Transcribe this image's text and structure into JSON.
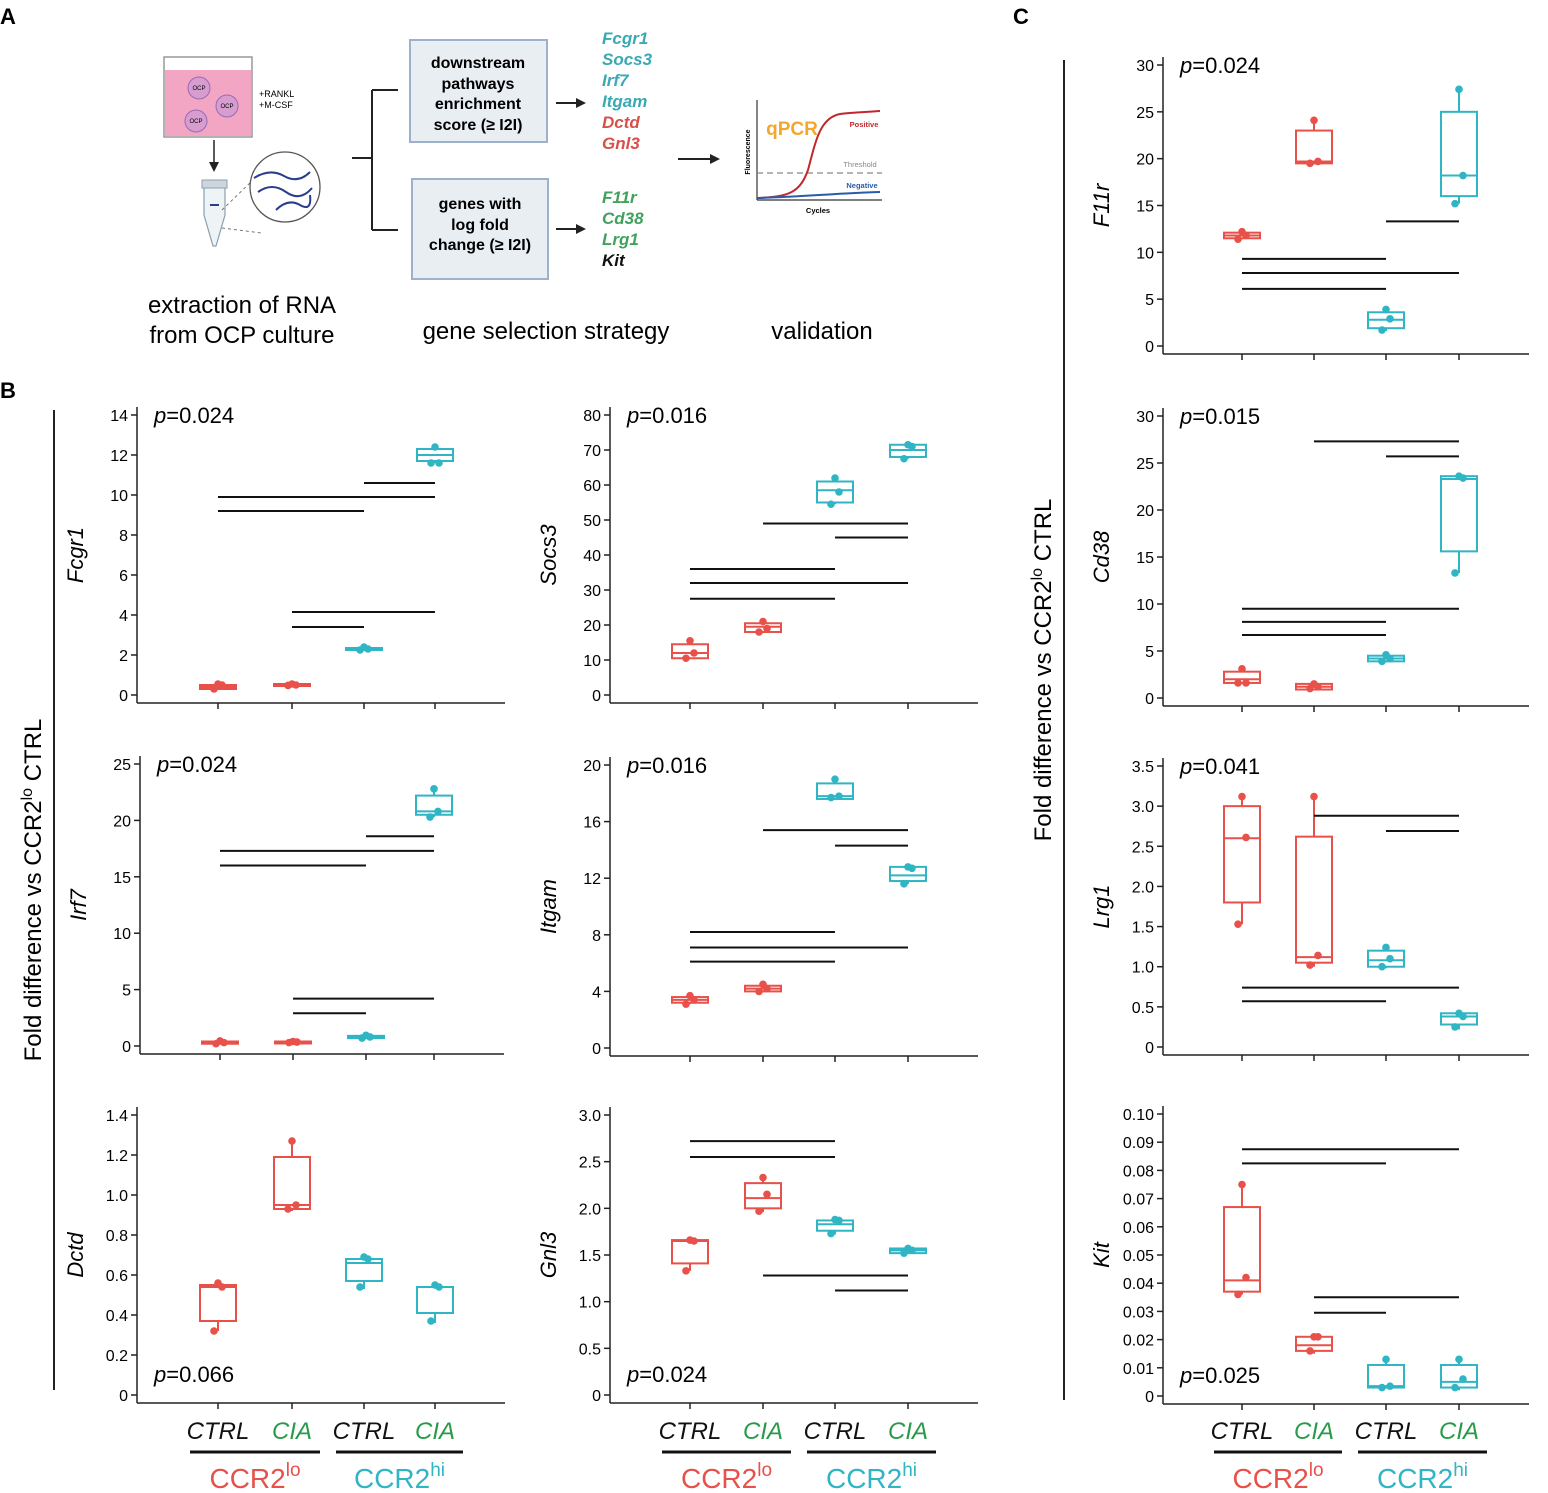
{
  "colors": {
    "lo": "#e8504a",
    "hi": "#2fb5c4",
    "ciaGreen": "#2a9a4a",
    "tealGene": "#3aa9b4",
    "redGene": "#d8504b",
    "greenGene": "#3fa35c",
    "qpcrOrange": "#f4a72d",
    "positiveRed": "#c0282d",
    "negativeBlue": "#2a5caa"
  },
  "panels": {
    "a": "A",
    "b": "B",
    "c": "C"
  },
  "schematic": {
    "flask_labels": [
      "OCP",
      "OCP",
      "OCP"
    ],
    "medium_lines": [
      "+RANKL",
      "+M-CSF"
    ],
    "extraction_lines": [
      "extraction of RNA",
      "from OCP culture"
    ],
    "box1_lines": [
      "downstream",
      "pathways",
      "enrichment",
      "score (≥ I2I)"
    ],
    "box2_lines": [
      "genes with",
      "log fold",
      "change (≥ I2I)"
    ],
    "genes_box1": [
      {
        "name": "Fcgr1",
        "kind": "teal"
      },
      {
        "name": "Socs3",
        "kind": "teal"
      },
      {
        "name": "Irf7",
        "kind": "teal"
      },
      {
        "name": "Itgam",
        "kind": "teal"
      },
      {
        "name": "Dctd",
        "kind": "red"
      },
      {
        "name": "Gnl3",
        "kind": "red"
      }
    ],
    "genes_box2": [
      {
        "name": "F11r",
        "kind": "green"
      },
      {
        "name": "Cd38",
        "kind": "green"
      },
      {
        "name": "Lrg1",
        "kind": "green"
      },
      {
        "name": "Kit",
        "kind": "black"
      }
    ],
    "strategy_label": "gene selection strategy",
    "validation_label": "validation",
    "qpcr": {
      "title": "qPCR",
      "positive": "Positive",
      "threshold": "Threshold",
      "negative": "Negative",
      "xlabel": "Cycles",
      "ylabel": "Fluorescence"
    }
  },
  "y_axis_title_b": "Fold difference vs CCR2lo CTRL",
  "y_axis_title_c": "Fold difference vs CCR2lo CTRL",
  "x_groups": {
    "cat1": "CTRL",
    "cat2": "CIA",
    "lo_prefix": "CCR2",
    "lo_sup": "lo",
    "hi_prefix": "CCR2",
    "hi_sup": "hi"
  },
  "chart_data": [
    {
      "type": "box",
      "gene": "Fcgr1",
      "pvalue": "p=0.024",
      "ylim": [
        0,
        14
      ],
      "yticks": [
        0,
        2,
        4,
        6,
        8,
        10,
        12,
        14
      ],
      "ytick_labels": [
        "0",
        "2",
        "4",
        "6",
        "8",
        "10",
        "12",
        "14"
      ],
      "categories": [
        "CCR2lo CTRL",
        "CCR2lo CIA",
        "CCR2hi CTRL",
        "CCR2hi CIA"
      ],
      "groups": [
        {
          "q1": 0.3,
          "median": 0.4,
          "q3": 0.5,
          "wmin": 0.3,
          "wmax": 0.55,
          "points": [
            0.3,
            0.5,
            0.55
          ]
        },
        {
          "q1": 0.48,
          "median": 0.5,
          "q3": 0.55,
          "wmin": 0.48,
          "wmax": 0.55,
          "points": [
            0.48,
            0.5,
            0.55
          ]
        },
        {
          "q1": 2.25,
          "median": 2.3,
          "q3": 2.35,
          "wmin": 2.25,
          "wmax": 2.4,
          "points": [
            2.25,
            2.3,
            2.4
          ]
        },
        {
          "q1": 11.7,
          "median": 12.0,
          "q3": 12.3,
          "wmin": 11.6,
          "wmax": 12.5,
          "points": [
            11.6,
            11.6,
            12.4
          ]
        }
      ],
      "brackets": [
        [
          0,
          2,
          9.2
        ],
        [
          0,
          3,
          9.9
        ],
        [
          2,
          3,
          10.6
        ],
        [
          1,
          2,
          3.4
        ],
        [
          1,
          3,
          4.15
        ]
      ]
    },
    {
      "type": "box",
      "gene": "Socs3",
      "pvalue": "p=0.016",
      "ylim": [
        0,
        80
      ],
      "yticks": [
        0,
        10,
        20,
        30,
        40,
        50,
        60,
        70,
        80
      ],
      "ytick_labels": [
        "0",
        "10",
        "20",
        "30",
        "40",
        "50",
        "60",
        "70",
        "80"
      ],
      "categories": [
        "CCR2lo CTRL",
        "CCR2lo CIA",
        "CCR2hi CTRL",
        "CCR2hi CIA"
      ],
      "groups": [
        {
          "q1": 10.5,
          "median": 12,
          "q3": 14.5,
          "wmin": 10.5,
          "wmax": 15.5,
          "points": [
            10.5,
            12,
            15.5
          ]
        },
        {
          "q1": 18,
          "median": 19.5,
          "q3": 20.5,
          "wmin": 18,
          "wmax": 21,
          "points": [
            18,
            19,
            21
          ]
        },
        {
          "q1": 55,
          "median": 58.5,
          "q3": 61,
          "wmin": 54.5,
          "wmax": 62,
          "points": [
            54.5,
            58,
            62
          ]
        },
        {
          "q1": 68,
          "median": 70,
          "q3": 71.5,
          "wmin": 67.5,
          "wmax": 71.5,
          "points": [
            67.5,
            71,
            71.5
          ]
        }
      ],
      "brackets": [
        [
          0,
          1,
          36
        ],
        [
          1,
          2,
          36
        ],
        [
          0,
          2,
          27.5
        ],
        [
          0,
          3,
          32
        ],
        [
          1,
          3,
          49
        ],
        [
          2,
          3,
          45
        ]
      ]
    },
    {
      "type": "box",
      "gene": "Irf7",
      "pvalue": "p=0.024",
      "ylim": [
        0,
        25
      ],
      "yticks": [
        0,
        5,
        10,
        15,
        20,
        25
      ],
      "ytick_labels": [
        "0",
        "5",
        "10",
        "15",
        "20",
        "25"
      ],
      "categories": [
        "CCR2lo CTRL",
        "CCR2lo CIA",
        "CCR2hi CTRL",
        "CCR2hi CIA"
      ],
      "groups": [
        {
          "q1": 0.2,
          "median": 0.3,
          "q3": 0.4,
          "wmin": 0.2,
          "wmax": 0.45,
          "points": [
            0.2,
            0.3,
            0.45
          ]
        },
        {
          "q1": 0.3,
          "median": 0.35,
          "q3": 0.4,
          "wmin": 0.3,
          "wmax": 0.4,
          "points": [
            0.3,
            0.35,
            0.4
          ]
        },
        {
          "q1": 0.7,
          "median": 0.8,
          "q3": 0.9,
          "wmin": 0.7,
          "wmax": 0.95,
          "points": [
            0.7,
            0.8,
            0.95
          ]
        },
        {
          "q1": 20.5,
          "median": 20.8,
          "q3": 22.2,
          "wmin": 20.3,
          "wmax": 22.8,
          "points": [
            20.3,
            20.8,
            22.8
          ]
        }
      ],
      "brackets": [
        [
          0,
          2,
          16
        ],
        [
          0,
          3,
          17.3
        ],
        [
          2,
          3,
          18.6
        ],
        [
          1,
          2,
          2.9
        ],
        [
          1,
          3,
          4.2
        ]
      ]
    },
    {
      "type": "box",
      "gene": "Itgam",
      "pvalue": "p=0.016",
      "ylim": [
        0,
        20
      ],
      "yticks": [
        0,
        4,
        8,
        12,
        16,
        20
      ],
      "ytick_labels": [
        "0",
        "4",
        "8",
        "12",
        "16",
        "20"
      ],
      "categories": [
        "CCR2lo CTRL",
        "CCR2lo CIA",
        "CCR2hi CTRL",
        "CCR2hi CIA"
      ],
      "groups": [
        {
          "q1": 3.2,
          "median": 3.4,
          "q3": 3.6,
          "wmin": 3.1,
          "wmax": 3.7,
          "points": [
            3.1,
            3.4,
            3.7
          ]
        },
        {
          "q1": 4.0,
          "median": 4.2,
          "q3": 4.4,
          "wmin": 4.0,
          "wmax": 4.5,
          "points": [
            4.0,
            4.2,
            4.5
          ]
        },
        {
          "q1": 17.6,
          "median": 17.8,
          "q3": 18.7,
          "wmin": 17.6,
          "wmax": 19.0,
          "points": [
            17.7,
            17.8,
            19.0
          ]
        },
        {
          "q1": 11.8,
          "median": 12.2,
          "q3": 12.8,
          "wmin": 11.6,
          "wmax": 12.8,
          "points": [
            11.6,
            12.7,
            12.8
          ]
        }
      ],
      "brackets": [
        [
          0,
          1,
          8.2
        ],
        [
          1,
          2,
          8.2
        ],
        [
          0,
          3,
          7.1
        ],
        [
          0,
          2,
          6.1
        ],
        [
          1,
          3,
          15.4
        ],
        [
          2,
          3,
          14.3
        ]
      ]
    },
    {
      "type": "box",
      "gene": "Dctd",
      "pvalue": "p=0.066",
      "ylim": [
        0,
        1.4
      ],
      "yticks": [
        0,
        0.2,
        0.4,
        0.6,
        0.8,
        1.0,
        1.2,
        1.4
      ],
      "ytick_labels": [
        "0",
        "0.2",
        "0.4",
        "0.6",
        "0.8",
        "1.0",
        "1.2",
        "1.4"
      ],
      "categories": [
        "CCR2lo CTRL",
        "CCR2lo CIA",
        "CCR2hi CTRL",
        "CCR2hi CIA"
      ],
      "groups": [
        {
          "q1": 0.37,
          "median": 0.54,
          "q3": 0.55,
          "wmin": 0.32,
          "wmax": 0.56,
          "points": [
            0.32,
            0.54,
            0.56
          ]
        },
        {
          "q1": 0.93,
          "median": 0.95,
          "q3": 1.19,
          "wmin": 0.92,
          "wmax": 1.27,
          "points": [
            0.93,
            0.95,
            1.27
          ]
        },
        {
          "q1": 0.57,
          "median": 0.66,
          "q3": 0.68,
          "wmin": 0.53,
          "wmax": 0.69,
          "points": [
            0.54,
            0.68,
            0.69
          ]
        },
        {
          "q1": 0.41,
          "median": 0.54,
          "q3": 0.54,
          "wmin": 0.36,
          "wmax": 0.55,
          "points": [
            0.37,
            0.54,
            0.55
          ]
        }
      ],
      "brackets": []
    },
    {
      "type": "box",
      "gene": "Gnl3",
      "pvalue": "p=0.024",
      "ylim": [
        0,
        3.0
      ],
      "yticks": [
        0,
        0.5,
        1.0,
        1.5,
        2.0,
        2.5,
        3.0
      ],
      "ytick_labels": [
        "0",
        "0.5",
        "1.0",
        "1.5",
        "2.0",
        "2.5",
        "3.0"
      ],
      "categories": [
        "CCR2lo CTRL",
        "CCR2lo CIA",
        "CCR2hi CTRL",
        "CCR2hi CIA"
      ],
      "groups": [
        {
          "q1": 1.41,
          "median": 1.65,
          "q3": 1.66,
          "wmin": 1.33,
          "wmax": 1.67,
          "points": [
            1.33,
            1.65,
            1.66
          ]
        },
        {
          "q1": 2.0,
          "median": 2.11,
          "q3": 2.27,
          "wmin": 1.96,
          "wmax": 2.33,
          "points": [
            1.97,
            2.15,
            2.33
          ]
        },
        {
          "q1": 1.76,
          "median": 1.83,
          "q3": 1.87,
          "wmin": 1.72,
          "wmax": 1.89,
          "points": [
            1.73,
            1.87,
            1.88
          ]
        },
        {
          "q1": 1.52,
          "median": 1.55,
          "q3": 1.57,
          "wmin": 1.51,
          "wmax": 1.58,
          "points": [
            1.52,
            1.55,
            1.57
          ]
        }
      ],
      "brackets": [
        [
          0,
          1,
          2.72
        ],
        [
          1,
          2,
          2.72
        ],
        [
          0,
          2,
          2.55
        ],
        [
          1,
          3,
          1.28
        ],
        [
          2,
          3,
          1.12
        ]
      ]
    },
    {
      "type": "box",
      "gene": "F11r",
      "pvalue": "p=0.024",
      "ylim": [
        0,
        30
      ],
      "yticks": [
        0,
        5,
        10,
        15,
        20,
        25,
        30
      ],
      "ytick_labels": [
        "0",
        "5",
        "10",
        "15",
        "20",
        "25",
        "30"
      ],
      "categories": [
        "CCR2lo CTRL",
        "CCR2lo CIA",
        "CCR2hi CTRL",
        "CCR2hi CIA"
      ],
      "groups": [
        {
          "q1": 11.5,
          "median": 11.8,
          "q3": 12.1,
          "wmin": 11.4,
          "wmax": 12.3,
          "points": [
            11.4,
            11.8,
            12.2
          ]
        },
        {
          "q1": 19.5,
          "median": 19.7,
          "q3": 23.0,
          "wmin": 19.4,
          "wmax": 24.1,
          "points": [
            19.5,
            19.7,
            24.1
          ]
        },
        {
          "q1": 1.9,
          "median": 2.8,
          "q3": 3.6,
          "wmin": 1.6,
          "wmax": 3.9,
          "points": [
            1.7,
            2.9,
            3.9
          ]
        },
        {
          "q1": 16.0,
          "median": 18.2,
          "q3": 25.0,
          "wmin": 15.2,
          "wmax": 27.4,
          "points": [
            15.2,
            18.2,
            27.4
          ]
        }
      ],
      "brackets": [
        [
          0,
          1,
          9.3
        ],
        [
          1,
          2,
          9.3
        ],
        [
          0,
          3,
          7.8
        ],
        [
          0,
          2,
          6.1
        ],
        [
          2,
          3,
          13.3
        ]
      ]
    },
    {
      "type": "box",
      "gene": "Cd38",
      "pvalue": "p=0.015",
      "ylim": [
        0,
        30
      ],
      "yticks": [
        0,
        5,
        10,
        15,
        20,
        25,
        30
      ],
      "ytick_labels": [
        "0",
        "5",
        "10",
        "15",
        "20",
        "25",
        "30"
      ],
      "categories": [
        "CCR2lo CTRL",
        "CCR2lo CIA",
        "CCR2hi CTRL",
        "CCR2hi CIA"
      ],
      "groups": [
        {
          "q1": 1.6,
          "median": 2.0,
          "q3": 2.8,
          "wmin": 1.6,
          "wmax": 3.2,
          "points": [
            1.6,
            1.6,
            3.1
          ]
        },
        {
          "q1": 0.9,
          "median": 1.2,
          "q3": 1.5,
          "wmin": 0.9,
          "wmax": 1.6,
          "points": [
            1.0,
            1.2,
            1.5
          ]
        },
        {
          "q1": 3.9,
          "median": 4.2,
          "q3": 4.5,
          "wmin": 3.9,
          "wmax": 4.7,
          "points": [
            3.9,
            4.2,
            4.6
          ]
        },
        {
          "q1": 15.6,
          "median": 23.3,
          "q3": 23.6,
          "wmin": 13.3,
          "wmax": 23.7,
          "points": [
            13.3,
            23.4,
            23.6
          ]
        }
      ],
      "brackets": [
        [
          0,
          1,
          6.7
        ],
        [
          1,
          2,
          6.7
        ],
        [
          0,
          2,
          8.1
        ],
        [
          0,
          3,
          9.5
        ],
        [
          1,
          3,
          27.3
        ],
        [
          2,
          3,
          25.7
        ]
      ]
    },
    {
      "type": "box",
      "gene": "Lrg1",
      "pvalue": "p=0.041",
      "ylim": [
        0,
        3.5
      ],
      "yticks": [
        0,
        0.5,
        1.0,
        1.5,
        2.0,
        2.5,
        3.0,
        3.5
      ],
      "ytick_labels": [
        "0",
        "0.5",
        "1.0",
        "1.5",
        "2.0",
        "2.5",
        "3.0",
        "3.5"
      ],
      "categories": [
        "CCR2lo CTRL",
        "CCR2lo CIA",
        "CCR2hi CTRL",
        "CCR2hi CIA"
      ],
      "groups": [
        {
          "q1": 1.8,
          "median": 2.6,
          "q3": 3.0,
          "wmin": 1.53,
          "wmax": 3.12,
          "points": [
            1.53,
            2.61,
            3.12
          ]
        },
        {
          "q1": 1.05,
          "median": 1.12,
          "q3": 2.62,
          "wmin": 1.0,
          "wmax": 3.12,
          "points": [
            1.02,
            1.14,
            3.12
          ]
        },
        {
          "q1": 1.0,
          "median": 1.08,
          "q3": 1.2,
          "wmin": 0.98,
          "wmax": 1.25,
          "points": [
            1.0,
            1.1,
            1.24
          ]
        },
        {
          "q1": 0.28,
          "median": 0.38,
          "q3": 0.42,
          "wmin": 0.22,
          "wmax": 0.43,
          "points": [
            0.25,
            0.38,
            0.42
          ]
        }
      ],
      "brackets": [
        [
          0,
          2,
          0.57
        ],
        [
          0,
          3,
          0.74
        ],
        [
          2,
          3,
          2.69
        ],
        [
          1,
          3,
          2.88
        ]
      ]
    },
    {
      "type": "box",
      "gene": "Kit",
      "pvalue": "p=0.025",
      "ylim": [
        0,
        0.1
      ],
      "yticks": [
        0,
        0.01,
        0.02,
        0.03,
        0.04,
        0.05,
        0.06,
        0.07,
        0.08,
        0.09,
        0.1
      ],
      "ytick_labels": [
        "0",
        "0.01",
        "0.02",
        "0.03",
        "0.04",
        "0.05",
        "0.06",
        "0.07",
        "0.08",
        "0.09",
        "0.10"
      ],
      "categories": [
        "CCR2lo CTRL",
        "CCR2lo CIA",
        "CCR2hi CTRL",
        "CCR2hi CIA"
      ],
      "groups": [
        {
          "q1": 0.037,
          "median": 0.041,
          "q3": 0.067,
          "wmin": 0.036,
          "wmax": 0.075,
          "points": [
            0.036,
            0.042,
            0.075
          ]
        },
        {
          "q1": 0.016,
          "median": 0.018,
          "q3": 0.021,
          "wmin": 0.015,
          "wmax": 0.021,
          "points": [
            0.016,
            0.021,
            0.021
          ]
        },
        {
          "q1": 0.003,
          "median": 0.0035,
          "q3": 0.011,
          "wmin": 0.003,
          "wmax": 0.013,
          "points": [
            0.003,
            0.0035,
            0.013
          ]
        },
        {
          "q1": 0.003,
          "median": 0.005,
          "q3": 0.011,
          "wmin": 0.002,
          "wmax": 0.013,
          "points": [
            0.003,
            0.006,
            0.013
          ]
        }
      ],
      "brackets": [
        [
          0,
          2,
          0.0825
        ],
        [
          0,
          3,
          0.0875
        ],
        [
          1,
          2,
          0.0295
        ],
        [
          1,
          3,
          0.035
        ]
      ]
    }
  ]
}
